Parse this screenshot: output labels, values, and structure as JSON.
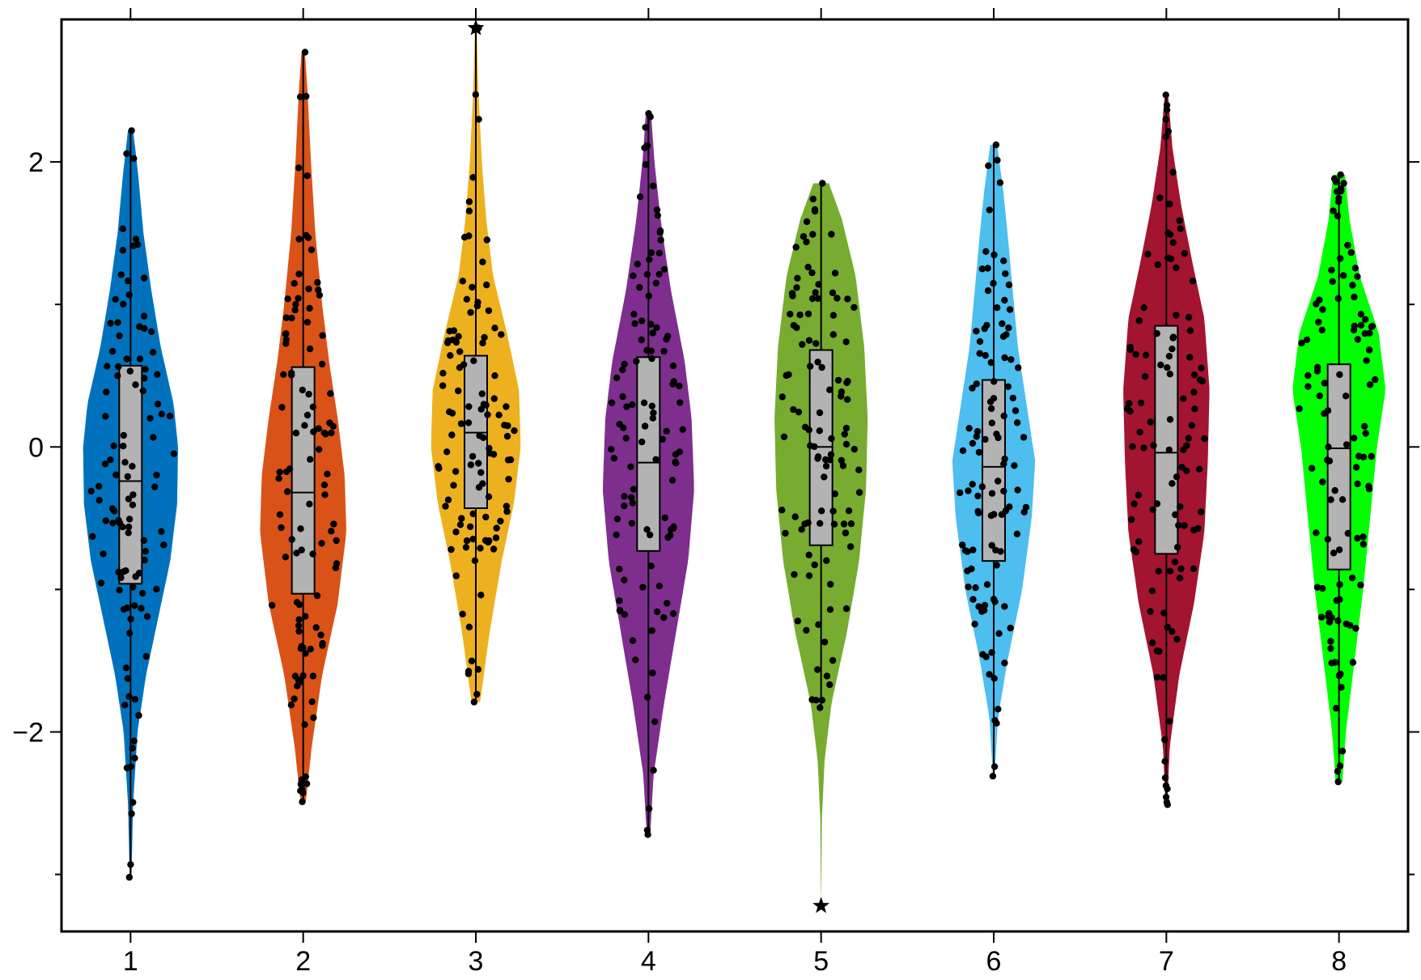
{
  "chart_data": {
    "type": "violin",
    "title": "",
    "xlabel": "",
    "ylabel": "",
    "xlim": [
      0.6,
      8.4
    ],
    "ylim": [
      -3.4,
      3.0
    ],
    "x_ticks": [
      1,
      2,
      3,
      4,
      5,
      6,
      7,
      8
    ],
    "x_tick_labels": [
      "1",
      "2",
      "3",
      "4",
      "5",
      "6",
      "7",
      "8"
    ],
    "y_ticks": [
      -2,
      0,
      2
    ],
    "y_tick_labels": [
      "−2",
      "0",
      "2"
    ],
    "y_minor_ticks": [
      -3,
      -1,
      1
    ],
    "grid": false,
    "series": [
      {
        "x": 1,
        "color": "#0072BD",
        "min": -3.02,
        "max": 2.22,
        "q1": -0.96,
        "median": -0.24,
        "q3": 0.57,
        "outliers": [],
        "density": [
          [
            -3.02,
            0.01
          ],
          [
            -2.5,
            0.03
          ],
          [
            -2.0,
            0.08
          ],
          [
            -1.6,
            0.18
          ],
          [
            -1.2,
            0.32
          ],
          [
            -0.8,
            0.46
          ],
          [
            -0.4,
            0.54
          ],
          [
            0.0,
            0.55
          ],
          [
            0.3,
            0.5
          ],
          [
            0.7,
            0.35
          ],
          [
            1.1,
            0.24
          ],
          [
            1.5,
            0.15
          ],
          [
            1.9,
            0.09
          ],
          [
            2.22,
            0.03
          ]
        ]
      },
      {
        "x": 2,
        "color": "#D95319",
        "min": -2.49,
        "max": 2.77,
        "q1": -1.03,
        "median": -0.32,
        "q3": 0.56,
        "outliers": [],
        "density": [
          [
            -2.49,
            0.03
          ],
          [
            -2.1,
            0.1
          ],
          [
            -1.6,
            0.22
          ],
          [
            -1.1,
            0.4
          ],
          [
            -0.6,
            0.5
          ],
          [
            -0.2,
            0.48
          ],
          [
            0.2,
            0.4
          ],
          [
            0.6,
            0.3
          ],
          [
            1.0,
            0.22
          ],
          [
            1.5,
            0.14
          ],
          [
            2.0,
            0.09
          ],
          [
            2.5,
            0.05
          ],
          [
            2.77,
            0.02
          ]
        ]
      },
      {
        "x": 3,
        "color": "#EDB120",
        "min": -1.79,
        "max": 2.94,
        "q1": -0.43,
        "median": 0.1,
        "q3": 0.64,
        "outliers": [
          2.94
        ],
        "density": [
          [
            -1.79,
            0.05
          ],
          [
            -1.3,
            0.16
          ],
          [
            -0.8,
            0.3
          ],
          [
            -0.4,
            0.44
          ],
          [
            0.0,
            0.52
          ],
          [
            0.4,
            0.5
          ],
          [
            0.8,
            0.36
          ],
          [
            1.2,
            0.2
          ],
          [
            1.6,
            0.12
          ],
          [
            2.0,
            0.07
          ],
          [
            2.5,
            0.03
          ],
          [
            2.94,
            0.01
          ]
        ]
      },
      {
        "x": 4,
        "color": "#7E2F8E",
        "min": -2.72,
        "max": 2.34,
        "q1": -0.73,
        "median": -0.11,
        "q3": 0.63,
        "outliers": [],
        "density": [
          [
            -2.72,
            0.02
          ],
          [
            -2.3,
            0.06
          ],
          [
            -1.8,
            0.18
          ],
          [
            -1.3,
            0.32
          ],
          [
            -0.8,
            0.46
          ],
          [
            -0.3,
            0.53
          ],
          [
            0.2,
            0.5
          ],
          [
            0.6,
            0.42
          ],
          [
            1.1,
            0.26
          ],
          [
            1.6,
            0.14
          ],
          [
            2.0,
            0.07
          ],
          [
            2.34,
            0.03
          ]
        ]
      },
      {
        "x": 5,
        "color": "#77AC30",
        "min": -1.83,
        "max": 1.85,
        "q1": -0.69,
        "median": 0.0,
        "q3": 0.68,
        "outliers": [
          -3.22
        ],
        "density": [
          [
            -3.22,
            0.0
          ],
          [
            -2.6,
            0.01
          ],
          [
            -2.2,
            0.04
          ],
          [
            -1.8,
            0.12
          ],
          [
            -1.3,
            0.3
          ],
          [
            -0.8,
            0.44
          ],
          [
            -0.3,
            0.52
          ],
          [
            0.2,
            0.54
          ],
          [
            0.7,
            0.5
          ],
          [
            1.2,
            0.4
          ],
          [
            1.6,
            0.24
          ],
          [
            1.85,
            0.09
          ]
        ]
      },
      {
        "x": 6,
        "color": "#4DBEEE",
        "min": -2.31,
        "max": 2.12,
        "q1": -0.8,
        "median": -0.14,
        "q3": 0.47,
        "outliers": [],
        "density": [
          [
            -2.31,
            0.01
          ],
          [
            -1.9,
            0.05
          ],
          [
            -1.5,
            0.16
          ],
          [
            -1.0,
            0.33
          ],
          [
            -0.5,
            0.44
          ],
          [
            -0.1,
            0.48
          ],
          [
            0.3,
            0.38
          ],
          [
            0.7,
            0.28
          ],
          [
            1.1,
            0.22
          ],
          [
            1.5,
            0.16
          ],
          [
            1.8,
            0.11
          ],
          [
            2.12,
            0.04
          ]
        ]
      },
      {
        "x": 7,
        "color": "#A2142F",
        "min": -2.51,
        "max": 2.47,
        "q1": -0.75,
        "median": -0.04,
        "q3": 0.85,
        "outliers": [],
        "density": [
          [
            -2.51,
            0.01
          ],
          [
            -2.1,
            0.04
          ],
          [
            -1.6,
            0.15
          ],
          [
            -1.1,
            0.32
          ],
          [
            -0.6,
            0.44
          ],
          [
            -0.1,
            0.48
          ],
          [
            0.4,
            0.5
          ],
          [
            0.9,
            0.44
          ],
          [
            1.3,
            0.3
          ],
          [
            1.7,
            0.17
          ],
          [
            2.1,
            0.07
          ],
          [
            2.47,
            0.02
          ]
        ]
      },
      {
        "x": 8,
        "color": "#00FF00",
        "min": -2.35,
        "max": 1.91,
        "q1": -0.86,
        "median": -0.01,
        "q3": 0.58,
        "outliers": [],
        "density": [
          [
            -2.35,
            0.04
          ],
          [
            -2.0,
            0.08
          ],
          [
            -1.5,
            0.18
          ],
          [
            -1.0,
            0.28
          ],
          [
            -0.5,
            0.36
          ],
          [
            0.0,
            0.44
          ],
          [
            0.4,
            0.54
          ],
          [
            0.8,
            0.46
          ],
          [
            1.2,
            0.24
          ],
          [
            1.6,
            0.12
          ],
          [
            1.91,
            0.07
          ]
        ]
      }
    ]
  }
}
